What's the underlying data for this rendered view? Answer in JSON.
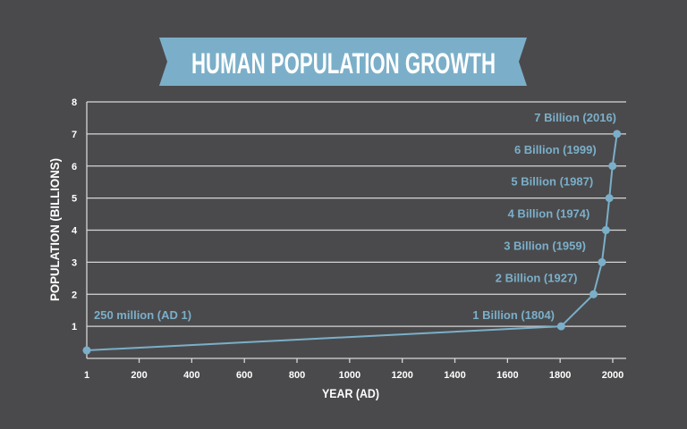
{
  "colors": {
    "background": "#4a4a4c",
    "accent": "#7bafc9",
    "grid": "#d6d6d6",
    "text": "#ffffff"
  },
  "chart_data": {
    "type": "line",
    "title": "HUMAN POPULATION GROWTH",
    "xlabel": "YEAR (AD)",
    "ylabel": "POPULATION (BILLIONS)",
    "xlim": [
      1,
      2050
    ],
    "ylim": [
      0,
      8
    ],
    "x_ticks": [
      1,
      200,
      400,
      600,
      800,
      1000,
      1200,
      1400,
      1600,
      1800,
      2000
    ],
    "x_tick_labels": [
      "1",
      "200",
      "400",
      "600",
      "800",
      "1000",
      "1200",
      "1400",
      "1600",
      "1800",
      "2000"
    ],
    "y_ticks": [
      1,
      2,
      3,
      4,
      5,
      6,
      7,
      8
    ],
    "y_tick_labels": [
      "1",
      "2",
      "3",
      "4",
      "5",
      "6",
      "7",
      "8"
    ],
    "grid": true,
    "series": [
      {
        "name": "Population",
        "x": [
          1,
          1804,
          1927,
          1959,
          1974,
          1987,
          1999,
          2016
        ],
        "y": [
          0.25,
          1,
          2,
          3,
          4,
          5,
          6,
          7
        ],
        "labels": [
          "250 million (AD 1)",
          "1 Billion (1804)",
          "2 Billion (1927)",
          "3 Billion (1959)",
          "4 Billion (1974)",
          "5 Billion (1987)",
          "6 Billion (1999)",
          "7 Billion (2016)"
        ]
      }
    ]
  }
}
